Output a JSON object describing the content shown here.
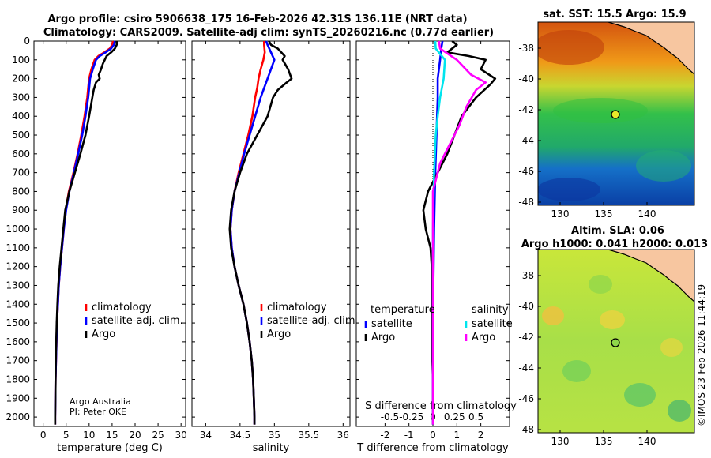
{
  "title": {
    "line1": "Argo profile: csiro 5906638_175 16-Feb-2026 42.31S 136.11E (NRT data)",
    "line2": "Climatology: CARS2009. Satellite-adj clim: synTS_20260216.nc (0.77d earlier)"
  },
  "credit": {
    "line1": "Argo Australia",
    "line2": "PI: Peter OKE"
  },
  "chart_data": [
    {
      "type": "line",
      "id": "temperature",
      "xlabel": "temperature (deg C)",
      "xlim": [
        -2,
        31
      ],
      "xticks": [
        0,
        5,
        10,
        15,
        20,
        25,
        30
      ],
      "ylim": [
        0,
        2050
      ],
      "yticks": [
        0,
        100,
        200,
        300,
        400,
        500,
        600,
        700,
        800,
        900,
        1000,
        1100,
        1200,
        1300,
        1400,
        1500,
        1600,
        1700,
        1800,
        1900,
        2000
      ],
      "legend": [
        "climatology",
        "satellite-adj. clim.",
        "Argo"
      ],
      "series": [
        {
          "name": "climatology",
          "color": "#ff0000",
          "points": [
            [
              15.2,
              0
            ],
            [
              15.0,
              20
            ],
            [
              14.5,
              40
            ],
            [
              13.3,
              60
            ],
            [
              12.0,
              80
            ],
            [
              11.2,
              100
            ],
            [
              10.5,
              150
            ],
            [
              10.0,
              200
            ],
            [
              9.6,
              300
            ],
            [
              9.0,
              400
            ],
            [
              8.3,
              500
            ],
            [
              7.5,
              600
            ],
            [
              6.6,
              700
            ],
            [
              5.6,
              800
            ],
            [
              4.9,
              900
            ],
            [
              4.5,
              1000
            ],
            [
              4.1,
              1100
            ],
            [
              3.7,
              1200
            ],
            [
              3.4,
              1300
            ],
            [
              3.2,
              1400
            ],
            [
              3.0,
              1500
            ],
            [
              2.9,
              1600
            ],
            [
              2.8,
              1700
            ],
            [
              2.7,
              1800
            ],
            [
              2.65,
              1900
            ],
            [
              2.6,
              2000
            ],
            [
              2.6,
              2040
            ]
          ]
        },
        {
          "name": "satellite-adj. clim.",
          "color": "#0000ff",
          "points": [
            [
              15.6,
              0
            ],
            [
              15.4,
              20
            ],
            [
              14.8,
              40
            ],
            [
              13.6,
              60
            ],
            [
              12.3,
              80
            ],
            [
              11.5,
              100
            ],
            [
              10.8,
              150
            ],
            [
              10.2,
              200
            ],
            [
              9.8,
              300
            ],
            [
              9.2,
              400
            ],
            [
              8.5,
              500
            ],
            [
              7.6,
              600
            ],
            [
              6.7,
              700
            ],
            [
              5.7,
              800
            ],
            [
              5.0,
              900
            ],
            [
              4.5,
              1000
            ],
            [
              4.1,
              1100
            ],
            [
              3.7,
              1200
            ],
            [
              3.4,
              1300
            ],
            [
              3.2,
              1400
            ],
            [
              3.0,
              1500
            ],
            [
              2.9,
              1600
            ],
            [
              2.8,
              1700
            ],
            [
              2.7,
              1800
            ],
            [
              2.65,
              1900
            ],
            [
              2.6,
              2000
            ],
            [
              2.6,
              2040
            ]
          ]
        },
        {
          "name": "Argo",
          "color": "#000000",
          "points": [
            [
              16.0,
              0
            ],
            [
              16.0,
              20
            ],
            [
              15.6,
              40
            ],
            [
              14.8,
              60
            ],
            [
              13.8,
              80
            ],
            [
              13.4,
              100
            ],
            [
              13.0,
              120
            ],
            [
              12.6,
              150
            ],
            [
              12.1,
              180
            ],
            [
              12.3,
              200
            ],
            [
              11.5,
              220
            ],
            [
              11.0,
              260
            ],
            [
              10.7,
              300
            ],
            [
              10.0,
              400
            ],
            [
              9.2,
              500
            ],
            [
              8.1,
              600
            ],
            [
              6.9,
              700
            ],
            [
              5.7,
              800
            ],
            [
              4.8,
              900
            ],
            [
              4.4,
              1000
            ],
            [
              4.0,
              1100
            ],
            [
              3.6,
              1200
            ],
            [
              3.3,
              1300
            ],
            [
              3.1,
              1400
            ],
            [
              2.95,
              1500
            ],
            [
              2.85,
              1600
            ],
            [
              2.75,
              1700
            ],
            [
              2.7,
              1800
            ],
            [
              2.65,
              1900
            ],
            [
              2.6,
              2000
            ],
            [
              2.6,
              2040
            ]
          ]
        }
      ]
    },
    {
      "type": "line",
      "id": "salinity",
      "xlabel": "salinity",
      "xlim": [
        33.8,
        36.1
      ],
      "xticks": [
        34,
        34.5,
        35,
        35.5,
        36
      ],
      "xticklabels": [
        "34",
        "34.5",
        "35",
        "35.5",
        "36"
      ],
      "ylim": [
        0,
        2050
      ],
      "legend": [
        "climatology",
        "satellite-adj. clim.",
        "Argo"
      ],
      "series": [
        {
          "name": "climatology",
          "color": "#ff0000",
          "points": [
            [
              34.85,
              0
            ],
            [
              34.85,
              20
            ],
            [
              34.86,
              60
            ],
            [
              34.84,
              100
            ],
            [
              34.8,
              150
            ],
            [
              34.77,
              200
            ],
            [
              34.75,
              250
            ],
            [
              34.72,
              300
            ],
            [
              34.68,
              400
            ],
            [
              34.62,
              500
            ],
            [
              34.55,
              600
            ],
            [
              34.48,
              700
            ],
            [
              34.42,
              800
            ],
            [
              34.38,
              900
            ],
            [
              34.36,
              1000
            ],
            [
              34.38,
              1100
            ],
            [
              34.42,
              1200
            ],
            [
              34.48,
              1300
            ],
            [
              34.55,
              1400
            ],
            [
              34.6,
              1500
            ],
            [
              34.64,
              1600
            ],
            [
              34.67,
              1700
            ],
            [
              34.69,
              1800
            ],
            [
              34.7,
              1900
            ],
            [
              34.71,
              2000
            ],
            [
              34.71,
              2040
            ]
          ]
        },
        {
          "name": "satellite-adj. clim.",
          "color": "#0000ff",
          "points": [
            [
              34.88,
              0
            ],
            [
              34.9,
              20
            ],
            [
              34.95,
              60
            ],
            [
              35.0,
              100
            ],
            [
              34.95,
              150
            ],
            [
              34.9,
              200
            ],
            [
              34.85,
              250
            ],
            [
              34.8,
              300
            ],
            [
              34.72,
              400
            ],
            [
              34.64,
              500
            ],
            [
              34.56,
              600
            ],
            [
              34.49,
              700
            ],
            [
              34.42,
              800
            ],
            [
              34.38,
              900
            ],
            [
              34.36,
              1000
            ],
            [
              34.38,
              1100
            ],
            [
              34.42,
              1200
            ],
            [
              34.48,
              1300
            ],
            [
              34.55,
              1400
            ],
            [
              34.6,
              1500
            ],
            [
              34.64,
              1600
            ],
            [
              34.67,
              1700
            ],
            [
              34.69,
              1800
            ],
            [
              34.7,
              1900
            ],
            [
              34.71,
              2000
            ],
            [
              34.71,
              2040
            ]
          ]
        },
        {
          "name": "Argo",
          "color": "#000000",
          "points": [
            [
              34.92,
              0
            ],
            [
              34.95,
              20
            ],
            [
              35.05,
              40
            ],
            [
              35.1,
              60
            ],
            [
              35.15,
              80
            ],
            [
              35.12,
              100
            ],
            [
              35.2,
              150
            ],
            [
              35.25,
              200
            ],
            [
              35.18,
              220
            ],
            [
              35.05,
              260
            ],
            [
              34.98,
              300
            ],
            [
              34.9,
              400
            ],
            [
              34.75,
              500
            ],
            [
              34.6,
              600
            ],
            [
              34.5,
              700
            ],
            [
              34.42,
              800
            ],
            [
              34.37,
              900
            ],
            [
              34.35,
              1000
            ],
            [
              34.37,
              1100
            ],
            [
              34.42,
              1200
            ],
            [
              34.48,
              1300
            ],
            [
              34.55,
              1400
            ],
            [
              34.6,
              1500
            ],
            [
              34.64,
              1600
            ],
            [
              34.67,
              1700
            ],
            [
              34.69,
              1800
            ],
            [
              34.7,
              1900
            ],
            [
              34.71,
              2000
            ],
            [
              34.71,
              2040
            ]
          ]
        }
      ]
    },
    {
      "type": "line",
      "id": "difference",
      "xlabel": "T difference from climatology",
      "xlabel_top": "S difference from climatology",
      "xlim": [
        -3.2,
        3.2
      ],
      "xticks": [
        -2,
        -1,
        0,
        1,
        2
      ],
      "xticklabels": [
        "-2",
        "-1",
        "0",
        "1",
        "2"
      ],
      "s_ticklabels": [
        "-0.5",
        "-0.25",
        "0",
        "0.25",
        "0.5"
      ],
      "s_scale": 0.25,
      "ylim": [
        0,
        2050
      ],
      "legend_temperature": {
        "title": "temperature",
        "items": [
          "satellite",
          "Argo"
        ]
      },
      "legend_salinity": {
        "title": "salinity",
        "items": [
          "satellite",
          "Argo"
        ]
      },
      "series": [
        {
          "name": "temperature satellite",
          "color": "#0000ff",
          "points": [
            [
              0.4,
              0
            ],
            [
              0.35,
              40
            ],
            [
              0.3,
              100
            ],
            [
              0.2,
              200
            ],
            [
              0.2,
              300
            ],
            [
              0.15,
              500
            ],
            [
              0.1,
              700
            ],
            [
              0.05,
              1000
            ],
            [
              0.0,
              1500
            ],
            [
              0.0,
              2040
            ]
          ]
        },
        {
          "name": "temperature Argo",
          "color": "#000000",
          "points": [
            [
              0.8,
              0
            ],
            [
              1.0,
              20
            ],
            [
              0.6,
              60
            ],
            [
              1.5,
              80
            ],
            [
              2.2,
              100
            ],
            [
              2.0,
              150
            ],
            [
              2.6,
              200
            ],
            [
              2.4,
              230
            ],
            [
              1.8,
              300
            ],
            [
              1.2,
              400
            ],
            [
              0.9,
              500
            ],
            [
              0.6,
              600
            ],
            [
              0.2,
              700
            ],
            [
              -0.2,
              800
            ],
            [
              -0.4,
              900
            ],
            [
              -0.3,
              1000
            ],
            [
              -0.1,
              1100
            ],
            [
              -0.05,
              1200
            ],
            [
              -0.05,
              1400
            ],
            [
              -0.05,
              1600
            ],
            [
              0.0,
              1800
            ],
            [
              0.0,
              2040
            ]
          ]
        },
        {
          "name": "salinity satellite",
          "color": "#00e5ee",
          "points": [
            [
              0.1,
              0
            ],
            [
              0.12,
              40
            ],
            [
              0.5,
              100
            ],
            [
              0.45,
              200
            ],
            [
              0.3,
              300
            ],
            [
              0.2,
              400
            ],
            [
              0.12,
              500
            ],
            [
              0.05,
              700
            ],
            [
              0.0,
              1000
            ],
            [
              0.0,
              1500
            ],
            [
              0.0,
              2040
            ]
          ]
        },
        {
          "name": "salinity Argo",
          "color": "#ff00ff",
          "points": [
            [
              0.25,
              0
            ],
            [
              0.3,
              40
            ],
            [
              1.0,
              100
            ],
            [
              1.6,
              180
            ],
            [
              2.2,
              220
            ],
            [
              1.8,
              260
            ],
            [
              1.4,
              350
            ],
            [
              1.1,
              450
            ],
            [
              0.7,
              550
            ],
            [
              0.3,
              650
            ],
            [
              0.0,
              800
            ],
            [
              0.0,
              1000
            ],
            [
              0.0,
              1500
            ],
            [
              0.0,
              2040
            ]
          ]
        }
      ]
    }
  ],
  "maps": [
    {
      "id": "sst",
      "title": "sat. SST: 15.5 Argo: 15.9",
      "xticks": [
        "130",
        "135",
        "140"
      ],
      "yticks": [
        "-38",
        "-40",
        "-42",
        "-44",
        "-46",
        "-48"
      ]
    },
    {
      "id": "sla",
      "title_line1": "Altim. SLA: 0.06",
      "title_line2": "Argo h1000: 0.041 h2000: 0.013",
      "xticks": [
        "130",
        "135",
        "140"
      ],
      "yticks": [
        "-38",
        "-40",
        "-42",
        "-44",
        "-46",
        "-48"
      ],
      "side_label": "©IMOS 23-Feb-2026 11:44:19"
    }
  ]
}
